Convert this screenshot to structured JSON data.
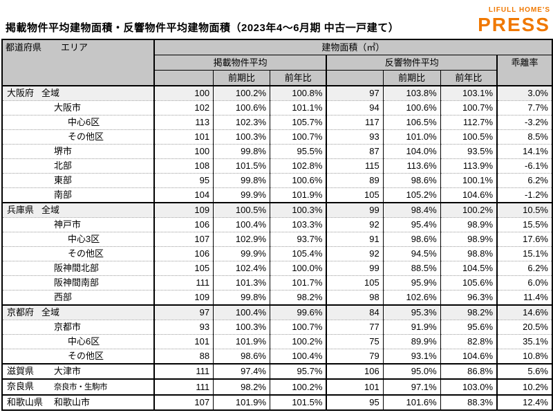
{
  "header": {
    "title": "掲載物件平均建物面積・反響物件平均建物面積（2023年4～6月期 中古一戸建て）",
    "logo": {
      "top": "LIFULL HOME'S",
      "bottom": "PRESS",
      "color": "#F07800"
    }
  },
  "table_headers": {
    "prefecture": "都道府県",
    "area": "エリア",
    "building_area": "建物面積（㎡）",
    "listed_avg": "掲載物件平均",
    "response_avg": "反響物件平均",
    "qoq": "前期比",
    "yoy": "前年比",
    "divergence": "乖離率"
  },
  "chart_data": {
    "type": "table",
    "title": "掲載物件平均建物面積・反響物件平均建物面積（2023年4～6月期 中古一戸建て）",
    "unit": "㎡",
    "columns": [
      "都道府県",
      "エリア",
      "掲載物件平均 建物面積",
      "掲載 前期比",
      "掲載 前年比",
      "反響物件平均 建物面積",
      "反響 前期比",
      "反響 前年比",
      "乖離率"
    ],
    "value_keys": [
      "listed_area",
      "listed_qoq",
      "listed_yoy",
      "resp_area",
      "resp_qoq",
      "resp_yoy",
      "divergence"
    ],
    "rows": [
      {
        "prefecture": "大阪府",
        "area": "全域",
        "indent": 0,
        "highlight": true,
        "section_start": true,
        "compact": false,
        "listed_area": 100,
        "listed_qoq": "100.2%",
        "listed_yoy": "100.8%",
        "resp_area": 97,
        "resp_qoq": "103.8%",
        "resp_yoy": "103.1%",
        "divergence": "3.0%"
      },
      {
        "prefecture": "",
        "area": "大阪市",
        "indent": 1,
        "highlight": false,
        "section_start": false,
        "compact": false,
        "listed_area": 102,
        "listed_qoq": "100.6%",
        "listed_yoy": "101.1%",
        "resp_area": 94,
        "resp_qoq": "100.6%",
        "resp_yoy": "100.7%",
        "divergence": "7.7%"
      },
      {
        "prefecture": "",
        "area": "中心6区",
        "indent": 2,
        "highlight": false,
        "section_start": false,
        "compact": false,
        "listed_area": 113,
        "listed_qoq": "102.3%",
        "listed_yoy": "105.7%",
        "resp_area": 117,
        "resp_qoq": "106.5%",
        "resp_yoy": "112.7%",
        "divergence": "-3.2%"
      },
      {
        "prefecture": "",
        "area": "その他区",
        "indent": 2,
        "highlight": false,
        "section_start": false,
        "compact": false,
        "listed_area": 101,
        "listed_qoq": "100.3%",
        "listed_yoy": "100.7%",
        "resp_area": 93,
        "resp_qoq": "101.0%",
        "resp_yoy": "100.5%",
        "divergence": "8.5%"
      },
      {
        "prefecture": "",
        "area": "堺市",
        "indent": 1,
        "highlight": false,
        "section_start": false,
        "compact": false,
        "listed_area": 100,
        "listed_qoq": "99.8%",
        "listed_yoy": "95.5%",
        "resp_area": 87,
        "resp_qoq": "104.0%",
        "resp_yoy": "93.5%",
        "divergence": "14.1%"
      },
      {
        "prefecture": "",
        "area": "北部",
        "indent": 1,
        "highlight": false,
        "section_start": false,
        "compact": false,
        "listed_area": 108,
        "listed_qoq": "101.5%",
        "listed_yoy": "102.8%",
        "resp_area": 115,
        "resp_qoq": "113.6%",
        "resp_yoy": "113.9%",
        "divergence": "-6.1%"
      },
      {
        "prefecture": "",
        "area": "東部",
        "indent": 1,
        "highlight": false,
        "section_start": false,
        "compact": false,
        "listed_area": 95,
        "listed_qoq": "99.8%",
        "listed_yoy": "100.6%",
        "resp_area": 89,
        "resp_qoq": "98.6%",
        "resp_yoy": "100.1%",
        "divergence": "6.2%"
      },
      {
        "prefecture": "",
        "area": "南部",
        "indent": 1,
        "highlight": false,
        "section_start": false,
        "compact": false,
        "listed_area": 104,
        "listed_qoq": "99.9%",
        "listed_yoy": "101.9%",
        "resp_area": 105,
        "resp_qoq": "105.2%",
        "resp_yoy": "104.6%",
        "divergence": "-1.2%"
      },
      {
        "prefecture": "兵庫県",
        "area": "全域",
        "indent": 0,
        "highlight": true,
        "section_start": true,
        "compact": false,
        "listed_area": 109,
        "listed_qoq": "100.5%",
        "listed_yoy": "100.3%",
        "resp_area": 99,
        "resp_qoq": "98.4%",
        "resp_yoy": "100.2%",
        "divergence": "10.5%"
      },
      {
        "prefecture": "",
        "area": "神戸市",
        "indent": 1,
        "highlight": false,
        "section_start": false,
        "compact": false,
        "listed_area": 106,
        "listed_qoq": "100.4%",
        "listed_yoy": "103.3%",
        "resp_area": 92,
        "resp_qoq": "95.4%",
        "resp_yoy": "98.9%",
        "divergence": "15.5%"
      },
      {
        "prefecture": "",
        "area": "中心3区",
        "indent": 2,
        "highlight": false,
        "section_start": false,
        "compact": false,
        "listed_area": 107,
        "listed_qoq": "102.9%",
        "listed_yoy": "93.7%",
        "resp_area": 91,
        "resp_qoq": "98.6%",
        "resp_yoy": "98.9%",
        "divergence": "17.6%"
      },
      {
        "prefecture": "",
        "area": "その他区",
        "indent": 2,
        "highlight": false,
        "section_start": false,
        "compact": false,
        "listed_area": 106,
        "listed_qoq": "99.9%",
        "listed_yoy": "105.4%",
        "resp_area": 92,
        "resp_qoq": "94.5%",
        "resp_yoy": "98.8%",
        "divergence": "15.1%"
      },
      {
        "prefecture": "",
        "area": "阪神間北部",
        "indent": 1,
        "highlight": false,
        "section_start": false,
        "compact": false,
        "listed_area": 105,
        "listed_qoq": "102.4%",
        "listed_yoy": "100.0%",
        "resp_area": 99,
        "resp_qoq": "88.5%",
        "resp_yoy": "104.5%",
        "divergence": "6.2%"
      },
      {
        "prefecture": "",
        "area": "阪神間南部",
        "indent": 1,
        "highlight": false,
        "section_start": false,
        "compact": false,
        "listed_area": 111,
        "listed_qoq": "101.3%",
        "listed_yoy": "101.7%",
        "resp_area": 105,
        "resp_qoq": "95.9%",
        "resp_yoy": "105.6%",
        "divergence": "6.0%"
      },
      {
        "prefecture": "",
        "area": "西部",
        "indent": 1,
        "highlight": false,
        "section_start": false,
        "compact": false,
        "listed_area": 109,
        "listed_qoq": "99.8%",
        "listed_yoy": "98.2%",
        "resp_area": 98,
        "resp_qoq": "102.6%",
        "resp_yoy": "96.3%",
        "divergence": "11.4%"
      },
      {
        "prefecture": "京都府",
        "area": "全域",
        "indent": 0,
        "highlight": true,
        "section_start": true,
        "compact": false,
        "listed_area": 97,
        "listed_qoq": "100.4%",
        "listed_yoy": "99.6%",
        "resp_area": 84,
        "resp_qoq": "95.3%",
        "resp_yoy": "98.2%",
        "divergence": "14.6%"
      },
      {
        "prefecture": "",
        "area": "京都市",
        "indent": 1,
        "highlight": false,
        "section_start": false,
        "compact": false,
        "listed_area": 93,
        "listed_qoq": "100.3%",
        "listed_yoy": "100.7%",
        "resp_area": 77,
        "resp_qoq": "91.9%",
        "resp_yoy": "95.6%",
        "divergence": "20.5%"
      },
      {
        "prefecture": "",
        "area": "中心6区",
        "indent": 2,
        "highlight": false,
        "section_start": false,
        "compact": false,
        "listed_area": 101,
        "listed_qoq": "101.9%",
        "listed_yoy": "100.2%",
        "resp_area": 75,
        "resp_qoq": "89.9%",
        "resp_yoy": "82.8%",
        "divergence": "35.1%"
      },
      {
        "prefecture": "",
        "area": "その他区",
        "indent": 2,
        "highlight": false,
        "section_start": false,
        "compact": false,
        "listed_area": 88,
        "listed_qoq": "98.6%",
        "listed_yoy": "100.4%",
        "resp_area": 79,
        "resp_qoq": "93.1%",
        "resp_yoy": "104.6%",
        "divergence": "10.8%"
      },
      {
        "prefecture": "滋賀県",
        "area": "大津市",
        "indent": 1,
        "highlight": false,
        "section_start": true,
        "compact": false,
        "listed_area": 111,
        "listed_qoq": "97.4%",
        "listed_yoy": "95.7%",
        "resp_area": 106,
        "resp_qoq": "95.0%",
        "resp_yoy": "86.8%",
        "divergence": "5.6%"
      },
      {
        "prefecture": "奈良県",
        "area": "奈良市・生駒市",
        "indent": 1,
        "highlight": false,
        "section_start": true,
        "compact": true,
        "listed_area": 111,
        "listed_qoq": "98.2%",
        "listed_yoy": "100.2%",
        "resp_area": 101,
        "resp_qoq": "97.1%",
        "resp_yoy": "103.0%",
        "divergence": "10.2%"
      },
      {
        "prefecture": "和歌山県",
        "area": "和歌山市",
        "indent": 1,
        "highlight": false,
        "section_start": true,
        "compact": false,
        "listed_area": 107,
        "listed_qoq": "101.9%",
        "listed_yoy": "101.5%",
        "resp_area": 95,
        "resp_qoq": "101.6%",
        "resp_yoy": "88.3%",
        "divergence": "12.4%"
      }
    ]
  }
}
